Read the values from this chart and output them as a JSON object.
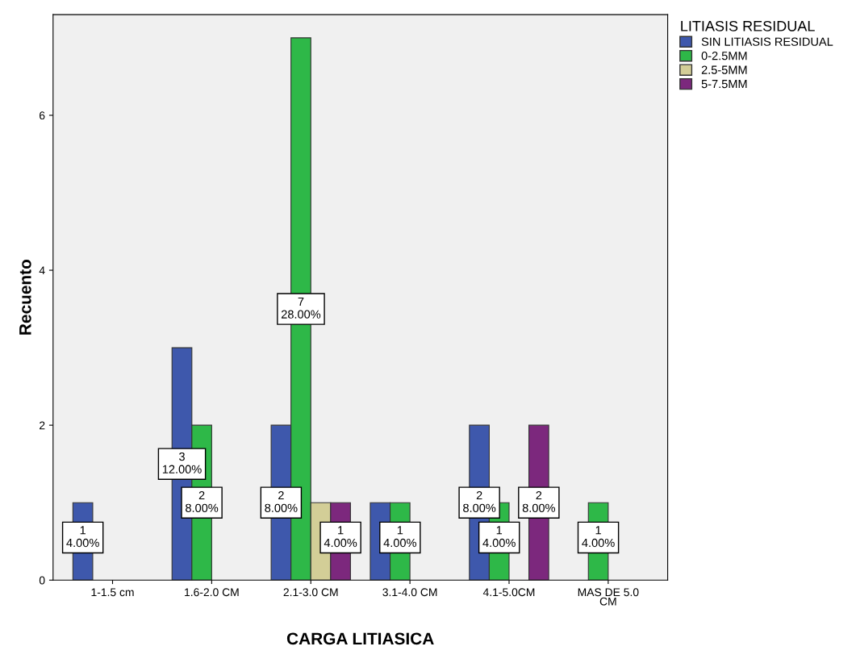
{
  "chart_data": {
    "type": "bar",
    "xlabel": "CARGA LITIASICA",
    "ylabel": "Recuento",
    "legend_title": "LITIASIS RESIDUAL",
    "categories": [
      "1-1.5 cm",
      "1.6-2.0 CM",
      "2.1-3.0 CM",
      "3.1-4.0 CM",
      "4.1-5.0CM",
      "MAS DE 5.0\nCM"
    ],
    "series": [
      {
        "name": "SIN LITIASIS RESIDUAL",
        "color": "#3e58ac",
        "values": [
          1,
          3,
          2,
          1,
          2,
          null
        ],
        "value_labels": [
          "1\n4.00%",
          "3\n12.00%",
          "2\n8.00%",
          null,
          "2\n8.00%",
          null
        ]
      },
      {
        "name": "0-2.5MM",
        "color": "#2eb848",
        "values": [
          null,
          2,
          7,
          1,
          1,
          1
        ],
        "value_labels": [
          null,
          "2\n8.00%",
          "7\n28.00%",
          "1\n4.00%",
          "1\n4.00%",
          "1\n4.00%"
        ]
      },
      {
        "name": "2.5-5MM",
        "color": "#d3ce97",
        "values": [
          null,
          null,
          1,
          null,
          null,
          null
        ],
        "value_labels": [
          null,
          null,
          null,
          null,
          null,
          null
        ]
      },
      {
        "name": "5-7.5MM",
        "color": "#7c287d",
        "values": [
          null,
          null,
          1,
          null,
          2,
          null
        ],
        "value_labels": [
          null,
          null,
          "1\n4.00%",
          null,
          "2\n8.00%",
          null
        ]
      }
    ],
    "ylim": [
      0,
      7.3
    ],
    "yticks": [
      0,
      2,
      4,
      6
    ],
    "grid": false,
    "legend": "top right"
  }
}
